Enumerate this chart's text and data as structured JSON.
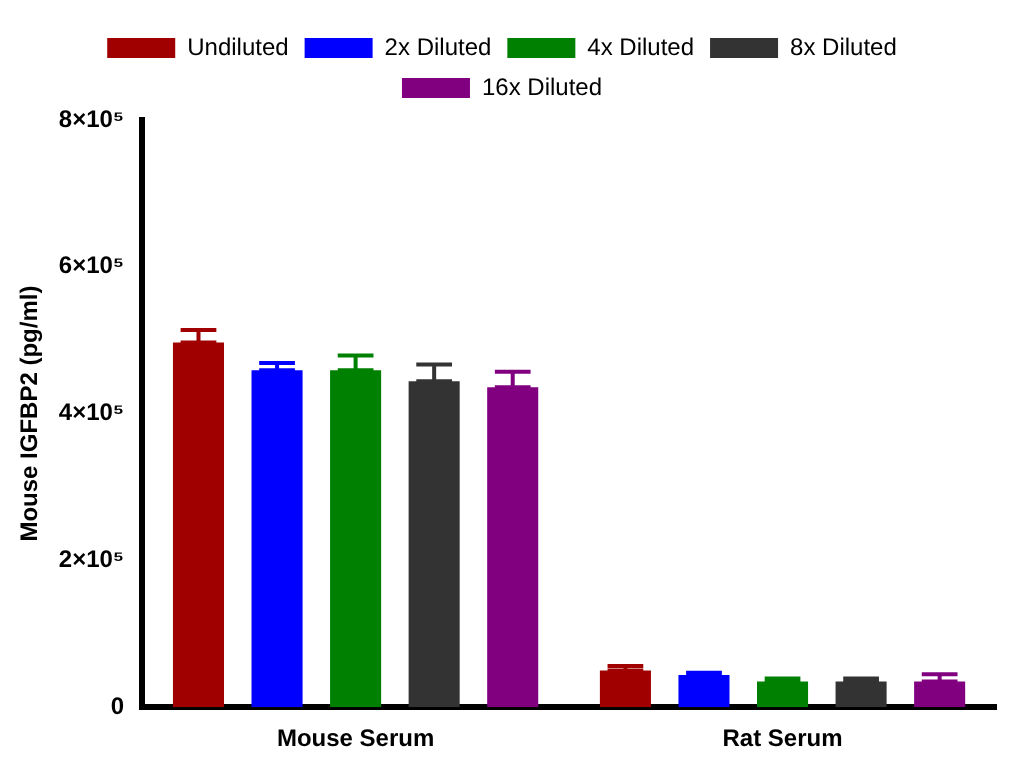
{
  "chart_data": {
    "type": "bar",
    "ylabel": "Mouse IGFBP2 (pg/ml)",
    "categories": [
      "Mouse Serum",
      "Rat Serum"
    ],
    "series": [
      {
        "name": "Undiluted",
        "color": "#a00000",
        "values": [
          497000,
          50000
        ],
        "errors": [
          [
            497000,
            514000
          ],
          [
            50000,
            56000
          ]
        ]
      },
      {
        "name": "2x Diluted",
        "color": "#0000ff",
        "values": [
          459000,
          44000
        ],
        "errors": [
          [
            459000,
            469000
          ],
          [
            44000,
            47000
          ]
        ]
      },
      {
        "name": "4x Diluted",
        "color": "#008000",
        "values": [
          459000,
          35000
        ],
        "errors": [
          [
            459000,
            479000
          ],
          [
            35000,
            39000
          ]
        ]
      },
      {
        "name": "8x Diluted",
        "color": "#333333",
        "values": [
          444000,
          35000
        ],
        "errors": [
          [
            444000,
            467000
          ],
          [
            35000,
            39000
          ]
        ]
      },
      {
        "name": "16x Diluted",
        "color": "#800080",
        "values": [
          436000,
          35000
        ],
        "errors": [
          [
            436000,
            457000
          ],
          [
            35000,
            45000
          ]
        ]
      }
    ],
    "ylim": [
      0,
      800000
    ],
    "yticks": [
      0,
      {
        "value": 200000,
        "label": "2×10⁵"
      },
      {
        "value": 400000,
        "label": "4×10⁵"
      },
      {
        "value": 600000,
        "label": "6×10⁵"
      },
      {
        "value": 800000,
        "label": "8×10⁵"
      }
    ],
    "grid": false,
    "legend": "top"
  }
}
